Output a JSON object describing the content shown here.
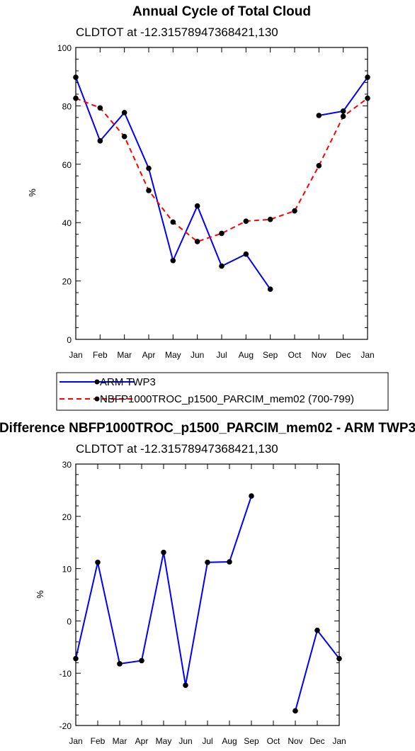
{
  "chart_data": [
    {
      "type": "line",
      "title": "Annual Cycle of Total Cloud",
      "subtitle": "CLDTOT at -12.31578947368421,130",
      "xlabel": "",
      "ylabel": "%",
      "ylim": [
        0,
        100
      ],
      "yticks": [
        0,
        20,
        40,
        60,
        80,
        100
      ],
      "categories": [
        "Jan",
        "Feb",
        "Mar",
        "Apr",
        "May",
        "Jun",
        "Jul",
        "Aug",
        "Sep",
        "Oct",
        "Nov",
        "Dec",
        "Jan"
      ],
      "series": [
        {
          "name": "ARM TWP3",
          "color": "#0000ff",
          "dash": "solid",
          "values": [
            89.8,
            68.0,
            77.7,
            58.6,
            27.0,
            45.7,
            25.1,
            29.2,
            17.2,
            null,
            76.7,
            78.2,
            89.8
          ]
        },
        {
          "name": "NBFP1000TROC_p1500_PARCIM_mem02 (700-799)",
          "color": "#ff0000",
          "dash": "dashed",
          "values": [
            82.6,
            79.3,
            69.5,
            51.0,
            40.2,
            33.5,
            36.3,
            40.5,
            41.1,
            44.0,
            59.5,
            76.4,
            82.6
          ]
        }
      ]
    },
    {
      "type": "line",
      "title": "Difference NBFP1000TROC_p1500_PARCIM_mem02 - ARM TWP3",
      "subtitle": "CLDTOT at -12.31578947368421,130",
      "xlabel": "",
      "ylabel": "%",
      "ylim": [
        -20,
        30
      ],
      "yticks": [
        -20,
        -10,
        0,
        10,
        20,
        30
      ],
      "categories": [
        "Jan",
        "Feb",
        "Mar",
        "Apr",
        "May",
        "Jun",
        "Jul",
        "Aug",
        "Sep",
        "Oct",
        "Nov",
        "Dec",
        "Jan"
      ],
      "series": [
        {
          "name": "",
          "color": "#0000ff",
          "dash": "solid",
          "values": [
            -7.2,
            11.2,
            -8.2,
            -7.6,
            13.1,
            -12.3,
            11.2,
            11.3,
            23.9,
            null,
            -17.2,
            -1.8,
            -7.2
          ]
        }
      ]
    }
  ]
}
